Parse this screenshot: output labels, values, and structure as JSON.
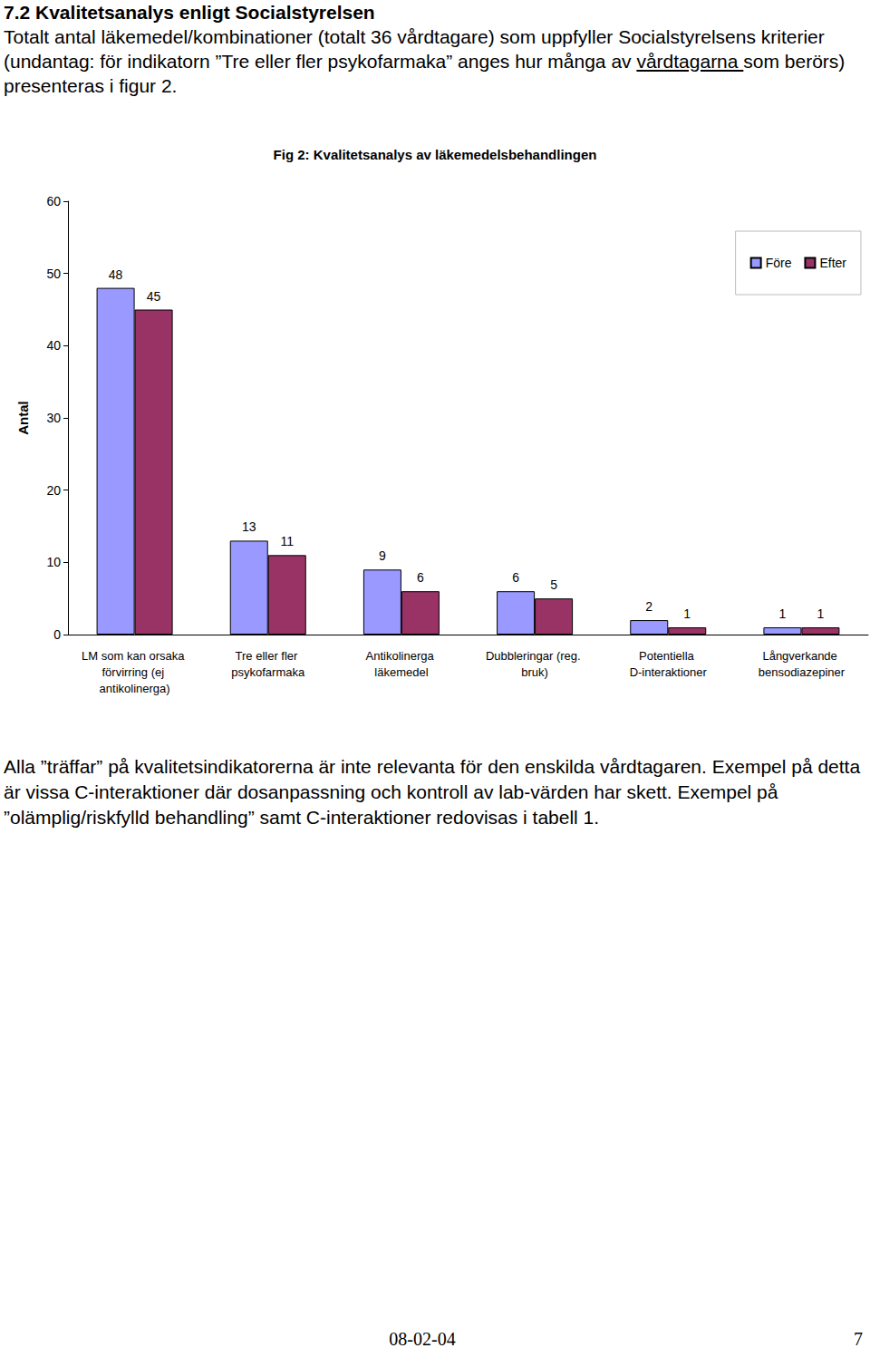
{
  "heading": "7.2 Kvalitetsanalys enligt Socialstyrelsen",
  "intro": {
    "before": "Totalt antal läkemedel/kombinationer (totalt 36 vårdtagare) som uppfyller Socialstyrelsens kriterier (undantag: för indikatorn ”Tre eller fler psykofarmaka” anges hur många av ",
    "underlined": "vårdtagarna ",
    "after": "som berörs) presenteras i figur 2."
  },
  "chart_data": {
    "type": "bar",
    "title": "Fig 2: Kvalitetsanalys av läkemedelsbehandlingen",
    "y_label": "Antal",
    "categories": [
      "LM som kan orsaka förvirring (ej antikolinerga)",
      "Tre eller fler psykofarmaka",
      "Antikolinerga läkemedel",
      "Dubbleringar (reg. bruk)",
      "Potentiella D-interaktioner",
      "Långverkande bensodiazepiner"
    ],
    "series": [
      {
        "name": "Före",
        "color": "#9999ff",
        "values": [
          48,
          13,
          9,
          6,
          2,
          1
        ]
      },
      {
        "name": "Efter",
        "color": "#993366",
        "values": [
          45,
          11,
          6,
          5,
          1,
          1
        ]
      }
    ],
    "ylim": [
      0,
      60
    ],
    "yticks": [
      0,
      10,
      20,
      30,
      40,
      50,
      60
    ],
    "grid": false,
    "legend": "top-right",
    "data_labels": true
  },
  "body": "Alla ”träffar” på kvalitetsindikatorerna är inte relevanta för den enskilda vårdtagaren. Exempel på detta är vissa C-interaktioner där dosanpassning och kontroll av lab-värden har skett. Exempel på ”olämplig/riskfylld behandling” samt C-interaktioner redovisas i tabell 1.",
  "footer": {
    "date": "08-02-04",
    "page": "7"
  }
}
